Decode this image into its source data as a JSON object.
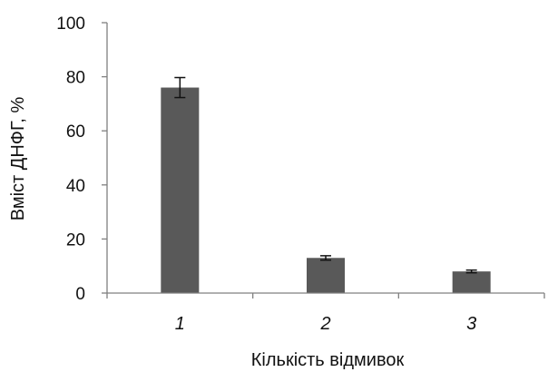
{
  "chart_data": {
    "type": "bar",
    "categories": [
      "1",
      "2",
      "3"
    ],
    "values": [
      76,
      13,
      8
    ],
    "errors": [
      3.7,
      0.8,
      0.5
    ],
    "title": "",
    "xlabel": "Кількість відмивок",
    "ylabel": "Вміст ДНФГ, %",
    "ylim": [
      0,
      100
    ],
    "yticks": [
      "0",
      "20",
      "40",
      "60",
      "80",
      "100"
    ],
    "grid": false,
    "bar_color": "#595959"
  }
}
